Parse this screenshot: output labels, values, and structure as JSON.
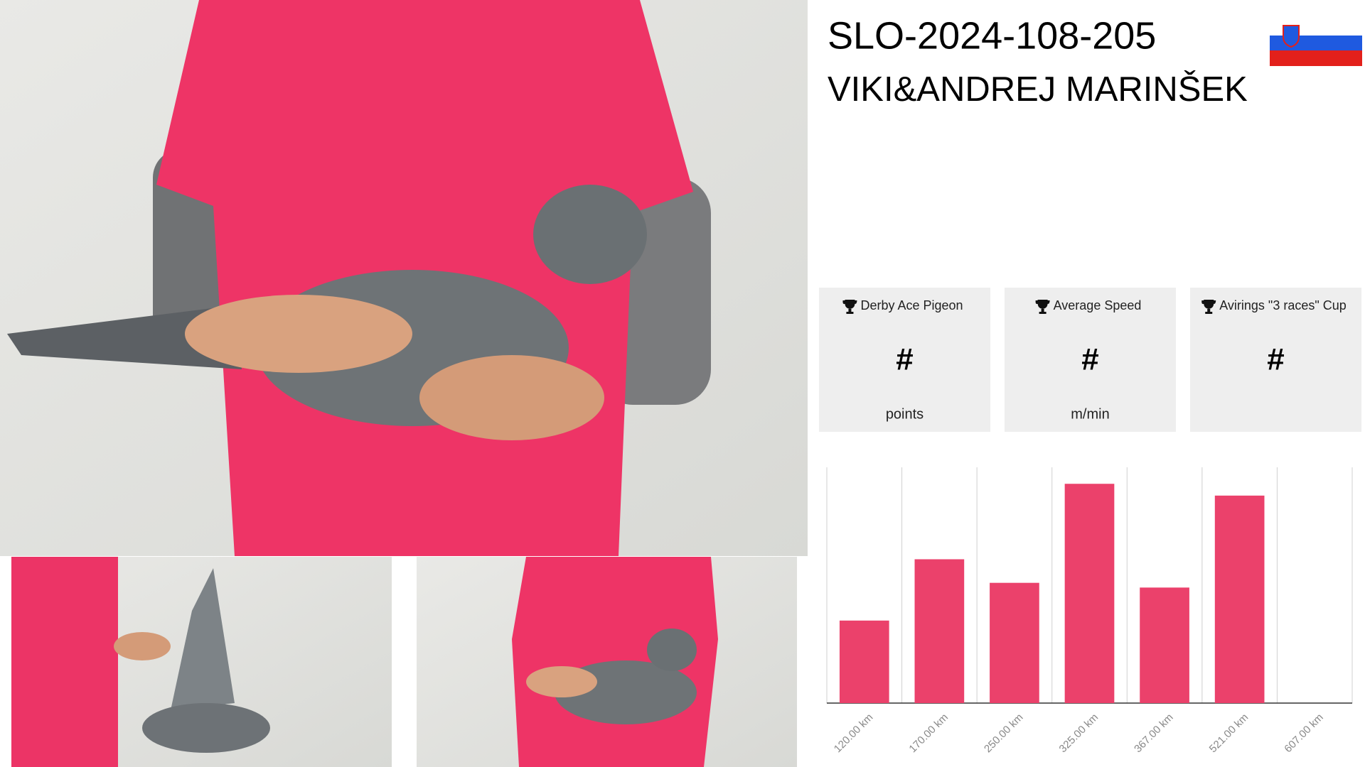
{
  "header": {
    "ring": "SLO-2024-108-205",
    "owner": "VIKI&ANDREJ MARINŠEK"
  },
  "cards": [
    {
      "title": "Derby Ace Pigeon",
      "value": "#",
      "unit": "points"
    },
    {
      "title": "Average Speed",
      "value": "#",
      "unit": "m/min"
    },
    {
      "title": "Avirings \"3 races\" Cup",
      "value": "#"
    }
  ],
  "chart_data": {
    "type": "bar",
    "categories": [
      "120.00 km",
      "170.00 km",
      "250.00 km",
      "325.00 km",
      "367.00 km",
      "521.00 km",
      "607.00 km"
    ],
    "values": [
      35,
      61,
      51,
      93,
      49,
      88,
      0
    ],
    "color": "#eb416b",
    "ylim": [
      0,
      100
    ],
    "grid": true
  }
}
